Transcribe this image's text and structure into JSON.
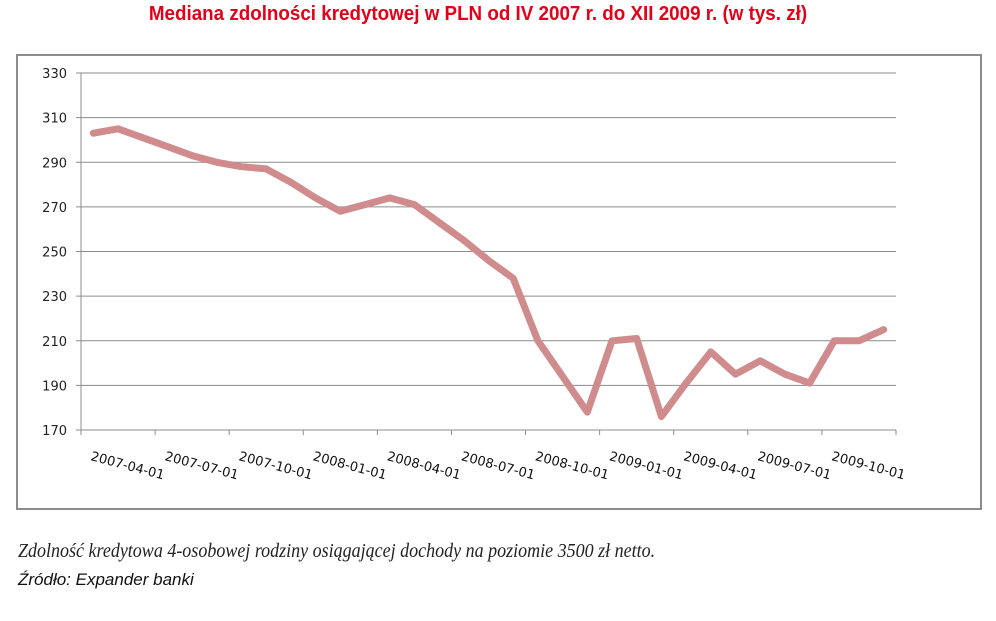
{
  "header": {
    "title": "Mediana zdolności kredytowej w PLN od IV 2007 r. do XII 2009 r. (w tys. zł)"
  },
  "footer": {
    "caption": "Zdolność kredytowa 4-osobowej rodziny osiągającej dochody na poziomie 3500 zł netto.",
    "source": "Źródło: Expander banki"
  },
  "colors": {
    "title": "#e0001a",
    "line": "#d08c8c",
    "grid": "#8c8c8c",
    "frame": "#8c8c8c"
  },
  "chart_data": {
    "type": "line",
    "title": "Mediana zdolności kredytowej w PLN od IV 2007 r. do XII 2009 r. (w tys. zł)",
    "xlabel": "",
    "ylabel": "",
    "ylim": [
      170,
      330
    ],
    "yticks": [
      170,
      190,
      210,
      230,
      250,
      270,
      290,
      310,
      330
    ],
    "xtick_labels": [
      "2007-04-01",
      "2007-07-01",
      "2007-10-01",
      "2008-01-01",
      "2008-04-01",
      "2008-07-01",
      "2008-10-01",
      "2009-01-01",
      "2009-04-01",
      "2009-07-01",
      "2009-10-01"
    ],
    "grid": true,
    "legend": null,
    "categories": [
      "2007-04",
      "2007-05",
      "2007-06",
      "2007-07",
      "2007-08",
      "2007-09",
      "2007-10",
      "2007-11",
      "2007-12",
      "2008-01",
      "2008-02",
      "2008-03",
      "2008-04",
      "2008-05",
      "2008-06",
      "2008-07",
      "2008-08",
      "2008-09",
      "2008-10",
      "2008-11",
      "2008-12",
      "2009-01",
      "2009-02",
      "2009-03",
      "2009-04",
      "2009-05",
      "2009-06",
      "2009-07",
      "2009-08",
      "2009-09",
      "2009-10",
      "2009-11",
      "2009-12"
    ],
    "series": [
      {
        "name": "Mediana zdolności kredytowej (tys. zł)",
        "values": [
          303,
          305,
          301,
          297,
          293,
          290,
          288,
          287,
          281,
          274,
          268,
          271,
          274,
          271,
          263,
          255,
          246,
          238,
          210,
          194,
          178,
          210,
          211,
          176,
          191,
          205,
          195,
          201,
          195,
          191,
          210,
          210,
          215
        ]
      }
    ]
  }
}
